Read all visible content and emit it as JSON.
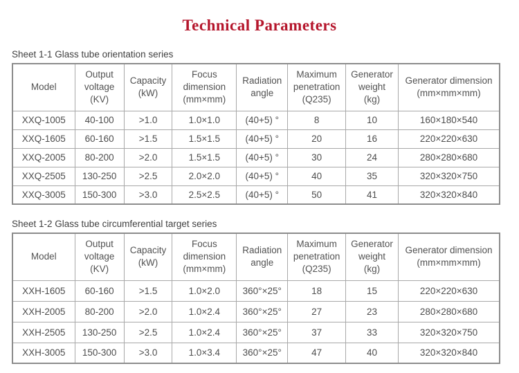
{
  "title": "Technical Parameters",
  "accent_color": "#b5162c",
  "tables": [
    {
      "caption": "Sheet 1-1 Glass tube orientation series",
      "headers": [
        "Model",
        "Output\nvoltage\n(KV)",
        "Capacity\n(kW)",
        "Focus\ndimension\n(mm×mm)",
        "Radiation\nangle",
        "Maximum\npenetration\n(Q235)",
        "Generator\nweight\n(kg)",
        "Generator dimension\n(mm×mm×mm)"
      ],
      "rows": [
        [
          "XXQ-1005",
          "40-100",
          ">1.0",
          "1.0×1.0",
          "(40+5) °",
          "8",
          "10",
          "160×180×540"
        ],
        [
          "XXQ-1605",
          "60-160",
          ">1.5",
          "1.5×1.5",
          "(40+5) °",
          "20",
          "16",
          "220×220×630"
        ],
        [
          "XXQ-2005",
          "80-200",
          ">2.0",
          "1.5×1.5",
          "(40+5) °",
          "30",
          "24",
          "280×280×680"
        ],
        [
          "XXQ-2505",
          "130-250",
          ">2.5",
          "2.0×2.0",
          "(40+5) °",
          "40",
          "35",
          "320×320×750"
        ],
        [
          "XXQ-3005",
          "150-300",
          ">3.0",
          "2.5×2.5",
          "(40+5) °",
          "50",
          "41",
          "320×320×840"
        ]
      ]
    },
    {
      "caption": "Sheet 1-2 Glass tube circumferential target series",
      "headers": [
        "Model",
        "Output\nvoltage\n(KV)",
        "Capacity\n(kW)",
        "Focus\ndimension\n(mm×mm)",
        "Radiation\nangle",
        "Maximum\npenetration\n(Q235)",
        "Generator\nweight\n(kg)",
        "Generator dimension\n(mm×mm×mm)"
      ],
      "rows": [
        [
          "XXH-1605",
          "60-160",
          ">1.5",
          "1.0×2.0",
          "360°×25°",
          "18",
          "15",
          "220×220×630"
        ],
        [
          "XXH-2005",
          "80-200",
          ">2.0",
          "1.0×2.4",
          "360°×25°",
          "27",
          "23",
          "280×280×680"
        ],
        [
          "XXH-2505",
          "130-250",
          ">2.5",
          "1.0×2.4",
          "360°×25°",
          "37",
          "33",
          "320×320×750"
        ],
        [
          "XXH-3005",
          "150-300",
          ">3.0",
          "1.0×3.4",
          "360°×25°",
          "47",
          "40",
          "320×320×840"
        ]
      ]
    }
  ]
}
